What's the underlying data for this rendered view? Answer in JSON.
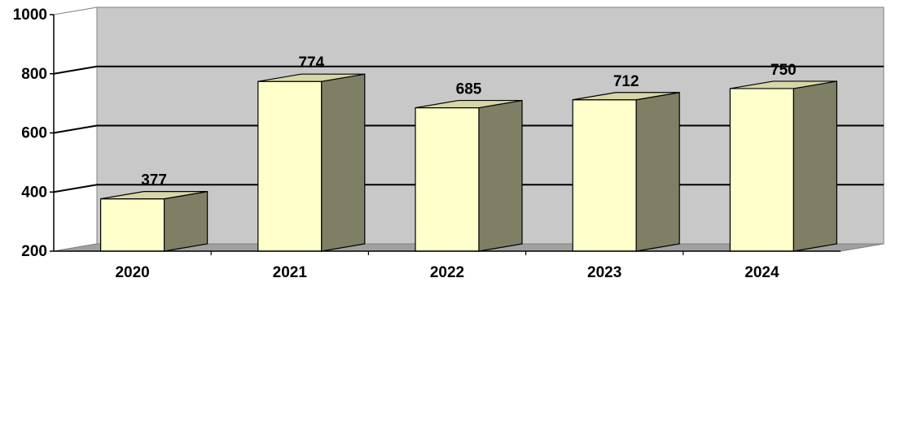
{
  "chart_data": {
    "type": "bar",
    "style": "3d-column",
    "title": "",
    "xlabel": "",
    "ylabel": "",
    "categories": [
      "2020",
      "2021",
      "2022",
      "2023",
      "2024"
    ],
    "values": [
      377,
      774,
      685,
      712,
      750
    ],
    "data_labels": [
      "377",
      "774",
      "685",
      "712",
      "750"
    ],
    "ylim": [
      200,
      1000
    ],
    "yticks": [
      "200",
      "400",
      "600",
      "800",
      "1000"
    ],
    "grid": true,
    "legend": "none",
    "colors": {
      "bar_front": "#ffffcc",
      "bar_side": "#7f7f66",
      "bar_top": "#d6d6a8",
      "back_wall": "#c8c8c8",
      "side_wall": "#ffffff",
      "floor": "#a0a0a0",
      "grid_line": "#000000"
    }
  }
}
